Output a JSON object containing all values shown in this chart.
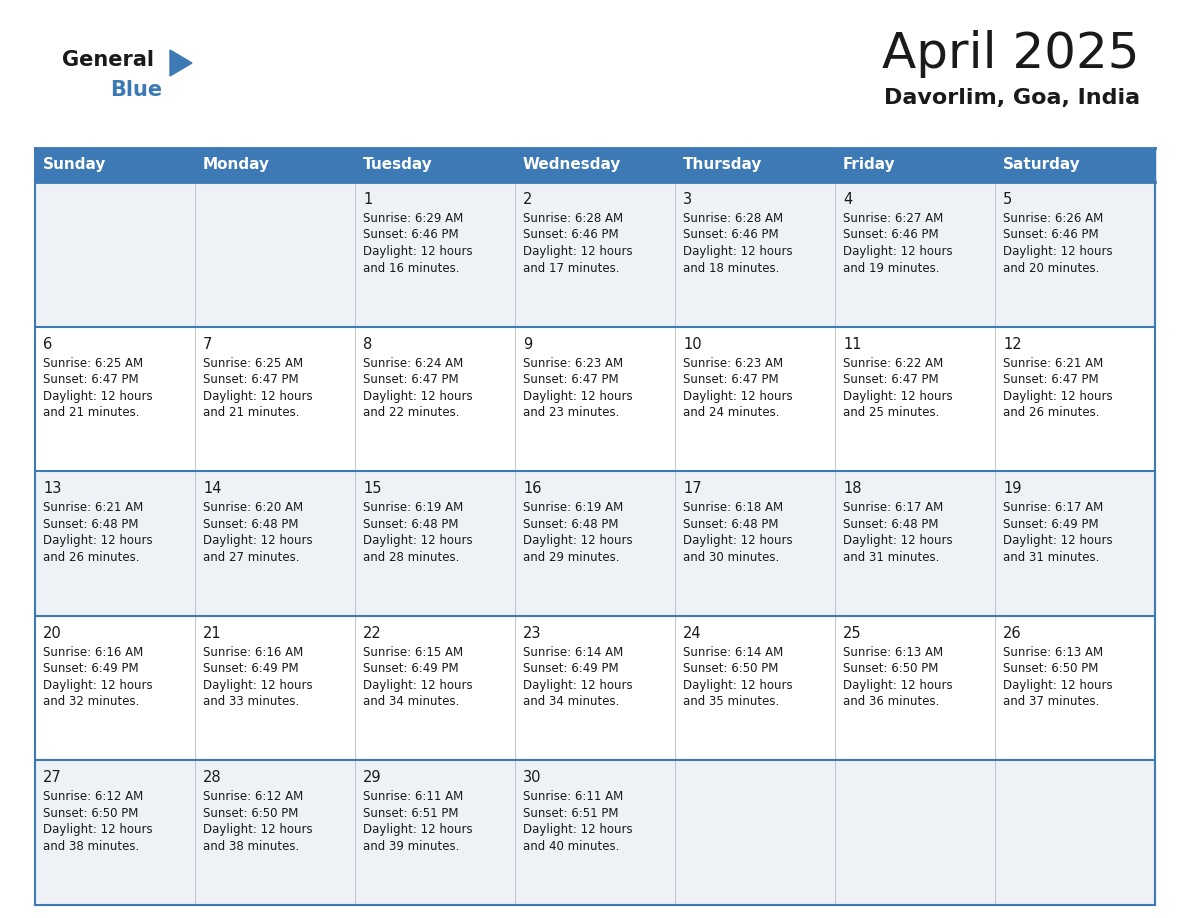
{
  "title": "April 2025",
  "subtitle": "Davorlim, Goa, India",
  "header_bg": "#3d7ab5",
  "header_text_color": "#ffffff",
  "cell_bg_odd": "#eef2f7",
  "cell_bg_even": "#ffffff",
  "border_color": "#3d7ab5",
  "border_color_light": "#2c5f8a",
  "day_names": [
    "Sunday",
    "Monday",
    "Tuesday",
    "Wednesday",
    "Thursday",
    "Friday",
    "Saturday"
  ],
  "days": [
    {
      "day": 1,
      "col": 2,
      "row": 0,
      "sunrise": "6:29 AM",
      "sunset": "6:46 PM",
      "daylight_hours": 12,
      "daylight_minutes": 16
    },
    {
      "day": 2,
      "col": 3,
      "row": 0,
      "sunrise": "6:28 AM",
      "sunset": "6:46 PM",
      "daylight_hours": 12,
      "daylight_minutes": 17
    },
    {
      "day": 3,
      "col": 4,
      "row": 0,
      "sunrise": "6:28 AM",
      "sunset": "6:46 PM",
      "daylight_hours": 12,
      "daylight_minutes": 18
    },
    {
      "day": 4,
      "col": 5,
      "row": 0,
      "sunrise": "6:27 AM",
      "sunset": "6:46 PM",
      "daylight_hours": 12,
      "daylight_minutes": 19
    },
    {
      "day": 5,
      "col": 6,
      "row": 0,
      "sunrise": "6:26 AM",
      "sunset": "6:46 PM",
      "daylight_hours": 12,
      "daylight_minutes": 20
    },
    {
      "day": 6,
      "col": 0,
      "row": 1,
      "sunrise": "6:25 AM",
      "sunset": "6:47 PM",
      "daylight_hours": 12,
      "daylight_minutes": 21
    },
    {
      "day": 7,
      "col": 1,
      "row": 1,
      "sunrise": "6:25 AM",
      "sunset": "6:47 PM",
      "daylight_hours": 12,
      "daylight_minutes": 21
    },
    {
      "day": 8,
      "col": 2,
      "row": 1,
      "sunrise": "6:24 AM",
      "sunset": "6:47 PM",
      "daylight_hours": 12,
      "daylight_minutes": 22
    },
    {
      "day": 9,
      "col": 3,
      "row": 1,
      "sunrise": "6:23 AM",
      "sunset": "6:47 PM",
      "daylight_hours": 12,
      "daylight_minutes": 23
    },
    {
      "day": 10,
      "col": 4,
      "row": 1,
      "sunrise": "6:23 AM",
      "sunset": "6:47 PM",
      "daylight_hours": 12,
      "daylight_minutes": 24
    },
    {
      "day": 11,
      "col": 5,
      "row": 1,
      "sunrise": "6:22 AM",
      "sunset": "6:47 PM",
      "daylight_hours": 12,
      "daylight_minutes": 25
    },
    {
      "day": 12,
      "col": 6,
      "row": 1,
      "sunrise": "6:21 AM",
      "sunset": "6:47 PM",
      "daylight_hours": 12,
      "daylight_minutes": 26
    },
    {
      "day": 13,
      "col": 0,
      "row": 2,
      "sunrise": "6:21 AM",
      "sunset": "6:48 PM",
      "daylight_hours": 12,
      "daylight_minutes": 26
    },
    {
      "day": 14,
      "col": 1,
      "row": 2,
      "sunrise": "6:20 AM",
      "sunset": "6:48 PM",
      "daylight_hours": 12,
      "daylight_minutes": 27
    },
    {
      "day": 15,
      "col": 2,
      "row": 2,
      "sunrise": "6:19 AM",
      "sunset": "6:48 PM",
      "daylight_hours": 12,
      "daylight_minutes": 28
    },
    {
      "day": 16,
      "col": 3,
      "row": 2,
      "sunrise": "6:19 AM",
      "sunset": "6:48 PM",
      "daylight_hours": 12,
      "daylight_minutes": 29
    },
    {
      "day": 17,
      "col": 4,
      "row": 2,
      "sunrise": "6:18 AM",
      "sunset": "6:48 PM",
      "daylight_hours": 12,
      "daylight_minutes": 30
    },
    {
      "day": 18,
      "col": 5,
      "row": 2,
      "sunrise": "6:17 AM",
      "sunset": "6:48 PM",
      "daylight_hours": 12,
      "daylight_minutes": 31
    },
    {
      "day": 19,
      "col": 6,
      "row": 2,
      "sunrise": "6:17 AM",
      "sunset": "6:49 PM",
      "daylight_hours": 12,
      "daylight_minutes": 31
    },
    {
      "day": 20,
      "col": 0,
      "row": 3,
      "sunrise": "6:16 AM",
      "sunset": "6:49 PM",
      "daylight_hours": 12,
      "daylight_minutes": 32
    },
    {
      "day": 21,
      "col": 1,
      "row": 3,
      "sunrise": "6:16 AM",
      "sunset": "6:49 PM",
      "daylight_hours": 12,
      "daylight_minutes": 33
    },
    {
      "day": 22,
      "col": 2,
      "row": 3,
      "sunrise": "6:15 AM",
      "sunset": "6:49 PM",
      "daylight_hours": 12,
      "daylight_minutes": 34
    },
    {
      "day": 23,
      "col": 3,
      "row": 3,
      "sunrise": "6:14 AM",
      "sunset": "6:49 PM",
      "daylight_hours": 12,
      "daylight_minutes": 34
    },
    {
      "day": 24,
      "col": 4,
      "row": 3,
      "sunrise": "6:14 AM",
      "sunset": "6:50 PM",
      "daylight_hours": 12,
      "daylight_minutes": 35
    },
    {
      "day": 25,
      "col": 5,
      "row": 3,
      "sunrise": "6:13 AM",
      "sunset": "6:50 PM",
      "daylight_hours": 12,
      "daylight_minutes": 36
    },
    {
      "day": 26,
      "col": 6,
      "row": 3,
      "sunrise": "6:13 AM",
      "sunset": "6:50 PM",
      "daylight_hours": 12,
      "daylight_minutes": 37
    },
    {
      "day": 27,
      "col": 0,
      "row": 4,
      "sunrise": "6:12 AM",
      "sunset": "6:50 PM",
      "daylight_hours": 12,
      "daylight_minutes": 38
    },
    {
      "day": 28,
      "col": 1,
      "row": 4,
      "sunrise": "6:12 AM",
      "sunset": "6:50 PM",
      "daylight_hours": 12,
      "daylight_minutes": 38
    },
    {
      "day": 29,
      "col": 2,
      "row": 4,
      "sunrise": "6:11 AM",
      "sunset": "6:51 PM",
      "daylight_hours": 12,
      "daylight_minutes": 39
    },
    {
      "day": 30,
      "col": 3,
      "row": 4,
      "sunrise": "6:11 AM",
      "sunset": "6:51 PM",
      "daylight_hours": 12,
      "daylight_minutes": 40
    }
  ]
}
